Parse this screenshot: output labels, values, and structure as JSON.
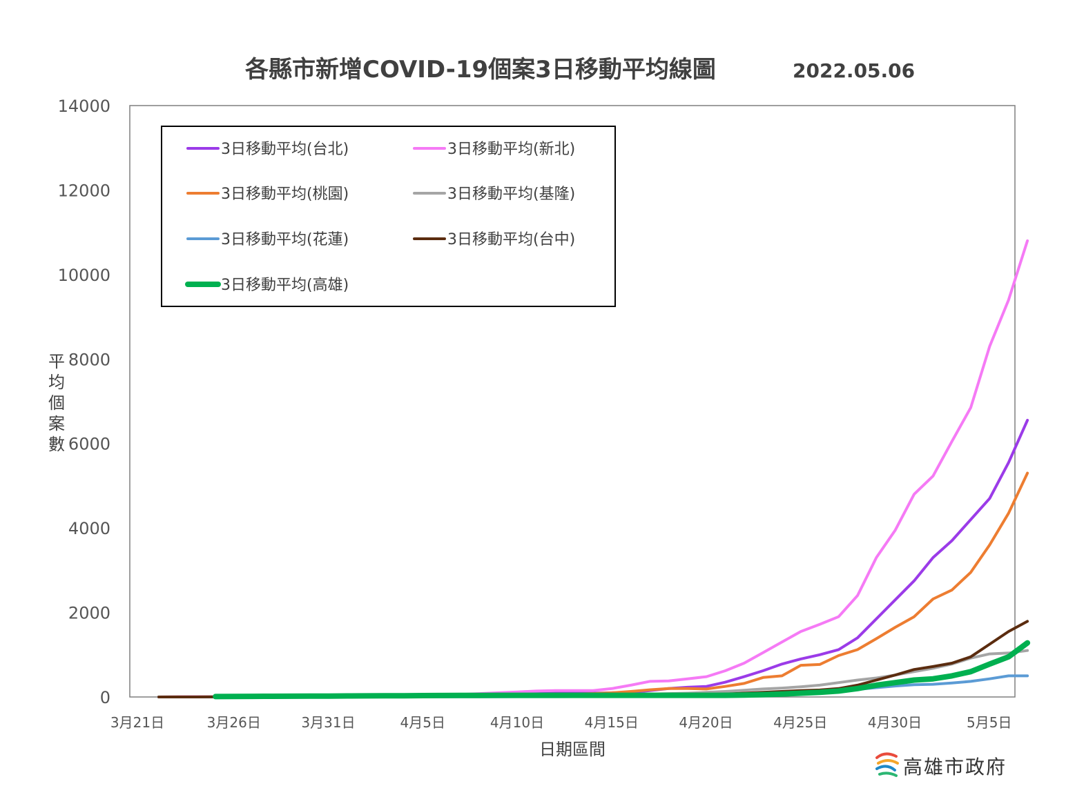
{
  "chart_data": {
    "type": "line",
    "title": "各縣市新增COVID-19個案3日移動平均線圖",
    "subtitle": "2022.05.06",
    "xlabel": "日期區間",
    "ylabel": "平均個案數",
    "ylim": [
      0,
      14000
    ],
    "yticks": [
      "0",
      "2000",
      "4000",
      "6000",
      "8000",
      "10000",
      "12000",
      "14000"
    ],
    "xticks": [
      "3月21日",
      "3月26日",
      "3月31日",
      "4月5日",
      "4月10日",
      "4月15日",
      "4月20日",
      "4月25日",
      "4月30日",
      "5月5日"
    ],
    "x": [
      "3/21",
      "3/22",
      "3/23",
      "3/24",
      "3/25",
      "3/26",
      "3/27",
      "3/28",
      "3/29",
      "3/30",
      "3/31",
      "4/1",
      "4/2",
      "4/3",
      "4/4",
      "4/5",
      "4/6",
      "4/7",
      "4/8",
      "4/9",
      "4/10",
      "4/11",
      "4/12",
      "4/13",
      "4/14",
      "4/15",
      "4/16",
      "4/17",
      "4/18",
      "4/19",
      "4/20",
      "4/21",
      "4/22",
      "4/23",
      "4/24",
      "4/25",
      "4/26",
      "4/27",
      "4/28",
      "4/29",
      "4/30",
      "5/1",
      "5/2",
      "5/3",
      "5/4",
      "5/5",
      "5/6"
    ],
    "legend_position": "top-left",
    "grid": false,
    "series": [
      {
        "name": "3日移動平均(台北)",
        "color": "#9B3BE8",
        "width": 4,
        "values": [
          0,
          2,
          3,
          4,
          5,
          6,
          7,
          8,
          9,
          10,
          12,
          14,
          16,
          20,
          25,
          30,
          40,
          50,
          60,
          70,
          80,
          90,
          90,
          90,
          100,
          110,
          150,
          200,
          230,
          250,
          350,
          480,
          620,
          780,
          900,
          1000,
          1120,
          1400,
          1850,
          2300,
          2750,
          3300,
          3700,
          4200,
          4700,
          5550,
          6550
        ]
      },
      {
        "name": "3日移動平均(新北)",
        "color": "#F57AF5",
        "width": 4,
        "values": [
          0,
          3,
          5,
          6,
          8,
          10,
          12,
          14,
          16,
          18,
          20,
          25,
          30,
          35,
          40,
          50,
          60,
          80,
          100,
          120,
          140,
          150,
          150,
          150,
          200,
          280,
          370,
          380,
          430,
          480,
          620,
          800,
          1050,
          1300,
          1550,
          1720,
          1900,
          2400,
          3300,
          3950,
          4800,
          5230,
          6050,
          6850,
          8300,
          9400,
          10800
        ]
      },
      {
        "name": "3日移動平均(桃園)",
        "color": "#ED7D31",
        "width": 4,
        "values": [
          0,
          1,
          2,
          3,
          4,
          5,
          6,
          7,
          8,
          9,
          10,
          12,
          14,
          16,
          18,
          20,
          25,
          30,
          40,
          50,
          60,
          70,
          70,
          80,
          100,
          130,
          170,
          200,
          200,
          190,
          250,
          320,
          460,
          500,
          750,
          770,
          980,
          1120,
          1380,
          1650,
          1900,
          2320,
          2530,
          2950,
          3600,
          4350,
          5300
        ]
      },
      {
        "name": "3日移動平均(基隆)",
        "color": "#A5A5A5",
        "width": 4,
        "values": [
          0,
          0,
          0,
          1,
          1,
          2,
          2,
          3,
          3,
          4,
          5,
          6,
          7,
          8,
          9,
          10,
          12,
          15,
          18,
          20,
          25,
          30,
          35,
          40,
          50,
          60,
          70,
          80,
          90,
          110,
          130,
          160,
          190,
          210,
          240,
          280,
          340,
          400,
          450,
          520,
          600,
          680,
          780,
          920,
          1020,
          1040,
          1100
        ]
      },
      {
        "name": "3日移動平均(花蓮)",
        "color": "#5B9BD5",
        "width": 4,
        "values": [
          0,
          0,
          0,
          0,
          1,
          1,
          1,
          1,
          2,
          2,
          2,
          2,
          3,
          3,
          3,
          4,
          4,
          5,
          5,
          6,
          6,
          7,
          8,
          9,
          10,
          12,
          14,
          16,
          20,
          25,
          30,
          40,
          55,
          70,
          90,
          110,
          140,
          180,
          220,
          260,
          290,
          300,
          330,
          370,
          430,
          500,
          500
        ]
      },
      {
        "name": "3日移動平均(台中)",
        "color": "#5B2C0F",
        "width": 4,
        "values": [
          0,
          0,
          0,
          1,
          1,
          2,
          2,
          3,
          3,
          4,
          5,
          6,
          7,
          8,
          9,
          10,
          12,
          14,
          16,
          18,
          20,
          22,
          25,
          30,
          35,
          40,
          45,
          50,
          55,
          60,
          70,
          90,
          110,
          130,
          150,
          165,
          200,
          280,
          400,
          520,
          650,
          720,
          800,
          950,
          1250,
          1550,
          1790
        ]
      },
      {
        "name": "3日移動平均(高雄)",
        "color": "#00B050",
        "width": 8,
        "values": [
          null,
          null,
          null,
          10,
          12,
          14,
          16,
          18,
          20,
          22,
          24,
          26,
          28,
          30,
          32,
          34,
          36,
          38,
          40,
          40,
          40,
          40,
          40,
          40,
          40,
          40,
          40,
          40,
          40,
          40,
          40,
          45,
          55,
          70,
          90,
          110,
          140,
          200,
          280,
          340,
          400,
          430,
          500,
          600,
          780,
          950,
          1280
        ]
      }
    ]
  },
  "legend_items": [
    {
      "label": "3日移動平均(台北)"
    },
    {
      "label": "3日移動平均(新北)"
    },
    {
      "label": "3日移動平均(桃園)"
    },
    {
      "label": "3日移動平均(基隆)"
    },
    {
      "label": "3日移動平均(花蓮)"
    },
    {
      "label": "3日移動平均(台中)"
    },
    {
      "label": "3日移動平均(高雄)"
    }
  ],
  "footer": {
    "org": "高雄市政府"
  },
  "colors": {
    "axis": "#595959",
    "text": "#404040"
  }
}
